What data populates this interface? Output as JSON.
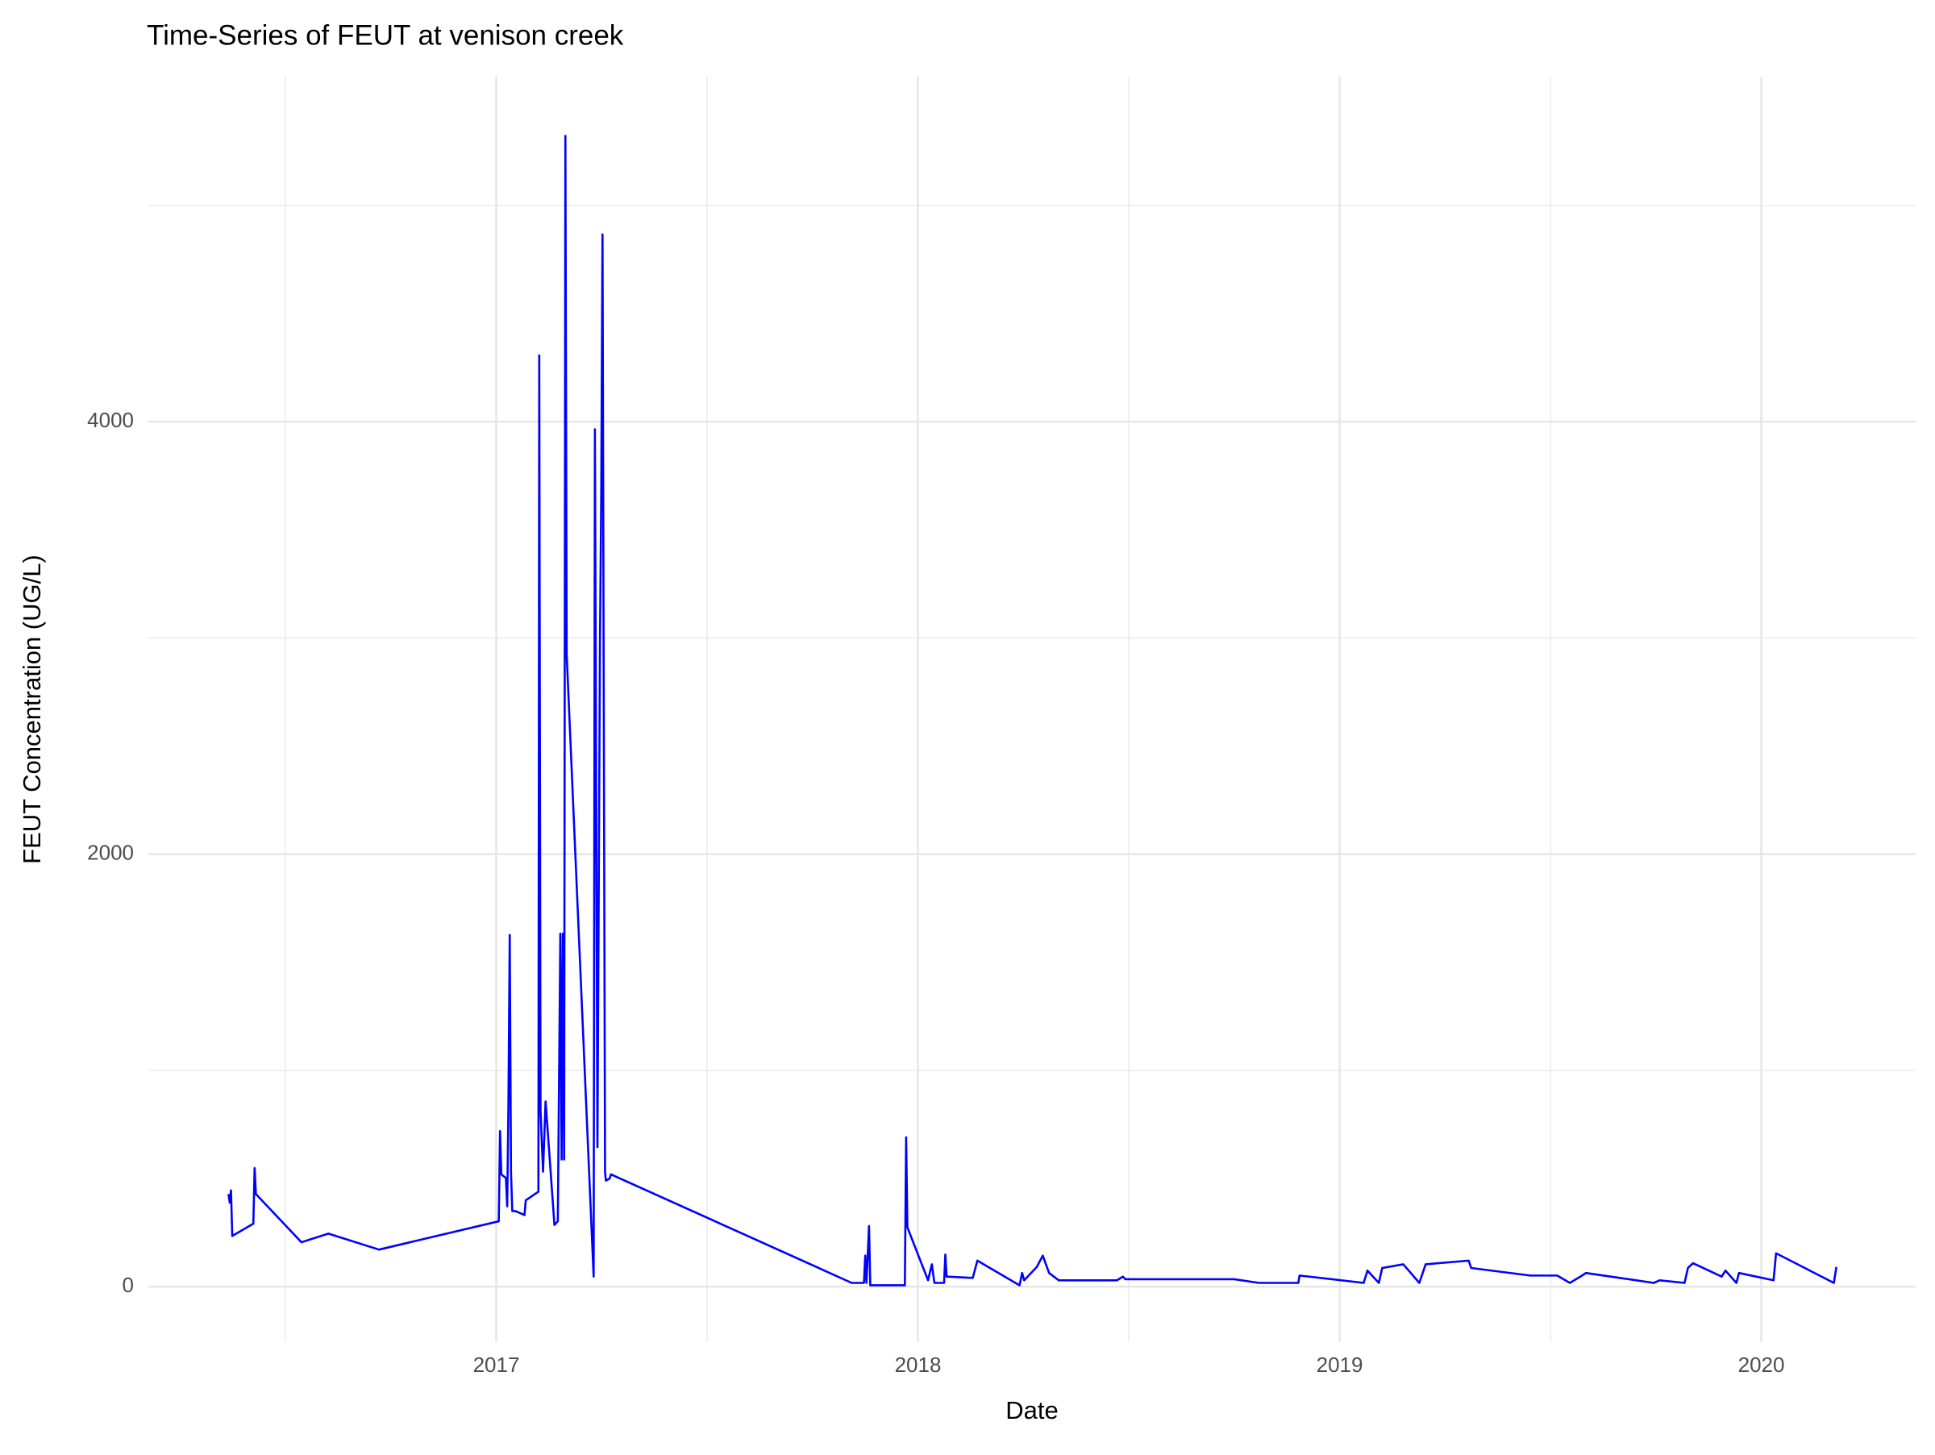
{
  "chart_data": {
    "type": "line",
    "title": "Time-Series of FEUT at venison creek",
    "x_label": "Date",
    "y_label": "FEUT Concentration (UG/L)",
    "color": "#0000ff",
    "grid": true,
    "xlim": [
      2016.175,
      2020.366
    ],
    "xticks": [
      2017,
      2018,
      2019,
      2020
    ],
    "ylim": [
      -257,
      5596
    ],
    "yticks": [
      0,
      2000,
      4000
    ],
    "x": [
      2016.365,
      2016.368,
      2016.371,
      2016.374,
      2016.424,
      2016.427,
      2016.43,
      2016.538,
      2016.602,
      2016.722,
      2017.006,
      2017.009,
      2017.012,
      2017.023,
      2017.026,
      2017.029,
      2017.032,
      2017.035,
      2017.038,
      2017.047,
      2017.067,
      2017.07,
      2017.1,
      2017.102,
      2017.105,
      2017.111,
      2017.117,
      2017.129,
      2017.138,
      2017.146,
      2017.152,
      2017.155,
      2017.158,
      2017.161,
      2017.164,
      2017.167,
      2017.231,
      2017.234,
      2017.24,
      2017.246,
      2017.249,
      2017.252,
      2017.258,
      2017.26,
      2017.269,
      2017.272,
      2017.843,
      2017.872,
      2017.875,
      2017.878,
      2017.884,
      2017.887,
      2017.969,
      2017.972,
      2017.975,
      2018.024,
      2018.033,
      2018.039,
      2018.062,
      2018.065,
      2018.068,
      2018.13,
      2018.141,
      2018.241,
      2018.247,
      2018.252,
      2018.282,
      2018.296,
      2018.311,
      2018.334,
      2018.472,
      2018.486,
      2018.492,
      2018.75,
      2018.809,
      2018.902,
      2018.905,
      2019.057,
      2019.066,
      2019.093,
      2019.101,
      2019.151,
      2019.189,
      2019.204,
      2019.306,
      2019.312,
      2019.452,
      2019.516,
      2019.546,
      2019.575,
      2019.584,
      2019.745,
      2019.759,
      2019.818,
      2019.826,
      2019.838,
      2019.906,
      2019.915,
      2019.941,
      2019.947,
      2020.029,
      2020.035,
      2020.172,
      2020.178
    ],
    "values": [
      428,
      388,
      445,
      234,
      291,
      548,
      428,
      205,
      245,
      171,
      302,
      719,
      519,
      502,
      371,
      856,
      1626,
      531,
      350,
      348,
      331,
      399,
      439,
      4307,
      816,
      531,
      856,
      531,
      285,
      302,
      1632,
      588,
      1632,
      588,
      5322,
      2926,
      46,
      3965,
      645,
      2983,
      3668,
      4866,
      531,
      490,
      500,
      519,
      17,
      17,
      143,
      17,
      280,
      6,
      6,
      690,
      274,
      29,
      103,
      17,
      17,
      148,
      46,
      40,
      120,
      6,
      63,
      29,
      91,
      143,
      63,
      29,
      29,
      46,
      34,
      34,
      17,
      17,
      51,
      17,
      74,
      17,
      86,
      103,
      17,
      103,
      120,
      86,
      51,
      51,
      17,
      51,
      63,
      17,
      29,
      17,
      86,
      108,
      46,
      74,
      17,
      63,
      29,
      154,
      17,
      91
    ]
  }
}
